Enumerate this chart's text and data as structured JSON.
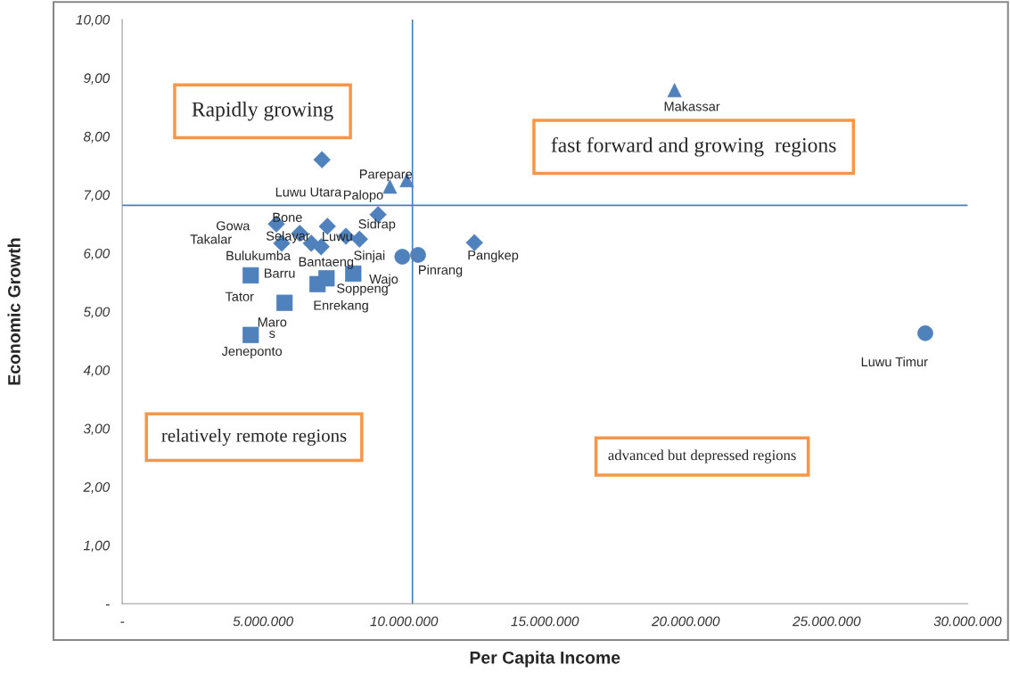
{
  "chart_data": {
    "type": "scatter",
    "xlabel": "Per Capita Income",
    "ylabel": "Economic Growth",
    "xlim": [
      0,
      30000000
    ],
    "ylim": [
      0,
      10
    ],
    "xticks": [
      {
        "value": 0,
        "label": "-"
      },
      {
        "value": 5000000,
        "label": "5.000.000"
      },
      {
        "value": 10000000,
        "label": "10.000.000"
      },
      {
        "value": 15000000,
        "label": "15.000.000"
      },
      {
        "value": 20000000,
        "label": "20.000.000"
      },
      {
        "value": 25000000,
        "label": "25.000.000"
      },
      {
        "value": 30000000,
        "label": "30.000.000"
      }
    ],
    "yticks": [
      {
        "value": 0,
        "label": "-"
      },
      {
        "value": 1,
        "label": "1,00"
      },
      {
        "value": 2,
        "label": "2,00"
      },
      {
        "value": 3,
        "label": "3,00"
      },
      {
        "value": 4,
        "label": "4,00"
      },
      {
        "value": 5,
        "label": "5,00"
      },
      {
        "value": 6,
        "label": "6,00"
      },
      {
        "value": 7,
        "label": "7,00"
      },
      {
        "value": 8,
        "label": "8,00"
      },
      {
        "value": 9,
        "label": "9,00"
      },
      {
        "value": 10,
        "label": "10,00"
      }
    ],
    "grid": false,
    "legend": false,
    "series": [
      {
        "color": "#4f81bd",
        "marker": "diamond",
        "x": [
          7090000,
          9080000,
          5470000,
          6300000,
          7280000,
          5660000,
          6710000,
          7060000,
          7940000,
          8420000,
          12500000
        ],
        "values": [
          7.6,
          6.66,
          6.5,
          6.34,
          6.46,
          6.17,
          6.17,
          6.11,
          6.29,
          6.24,
          6.18
        ]
      },
      {
        "color": "#4f81bd",
        "marker": "triangle",
        "x": [
          19600000,
          10100000,
          9500000
        ],
        "values": [
          8.79,
          7.25,
          7.14
        ]
      },
      {
        "color": "#4f81bd",
        "marker": "circle",
        "x": [
          9940000,
          10500000,
          28500000
        ],
        "values": [
          5.94,
          5.97,
          4.63
        ]
      },
      {
        "color": "#4f81bd",
        "marker": "square",
        "x": [
          4560000,
          5760000,
          4560000,
          7250000,
          6930000,
          8200000
        ],
        "values": [
          5.62,
          5.15,
          4.6,
          5.57,
          5.47,
          5.65
        ]
      }
    ],
    "ref_lines": [
      {
        "axis": "x",
        "value": 10300000,
        "color": "#4a7ebb"
      },
      {
        "axis": "y",
        "value": 6.82,
        "color": "#4a7ebb"
      }
    ],
    "annotations": [
      "Rapidly growing",
      "fast forward and growing  regions",
      "relatively remote regions",
      "advanced but depressed regions",
      "Gowa",
      "Takalar",
      {
        "text": "Luwu Utara",
        "x": 7090000,
        "y": 7.6
      },
      {
        "text": "Parepare",
        "x": 10100000,
        "y": 7.25
      },
      {
        "text": "Palopo",
        "x": 9080000,
        "y": 6.66
      },
      {
        "text": "Bone",
        "x": 6300000,
        "y": 6.34
      },
      {
        "text": "Selayar",
        "x": 5660000,
        "y": 6.17
      },
      {
        "text": "Luwu",
        "x": 7280000,
        "y": 6.46
      },
      {
        "text": "Sidrap",
        "x": 7940000,
        "y": 6.29
      },
      {
        "text": "Sinjai",
        "x": 8420000,
        "y": 6.24
      },
      {
        "text": "Bantaeng",
        "x": 7060000,
        "y": 6.11
      },
      {
        "text": "Bulukumba",
        "x": 4560000,
        "y": 5.62
      },
      {
        "text": "Tator",
        "x": 4560000,
        "y": 5.62
      },
      {
        "text": "Barru",
        "x": 5760000,
        "y": 5.15
      },
      {
        "text": "Maro\ns",
        "x": 5760000,
        "y": 5.15
      },
      {
        "text": "Jeneponto",
        "x": 4560000,
        "y": 4.6
      },
      {
        "text": "Soppeng",
        "x": 7250000,
        "y": 5.57
      },
      {
        "text": "Enrekang",
        "x": 6930000,
        "y": 5.47
      },
      {
        "text": "Wajo",
        "x": 9940000,
        "y": 5.94
      },
      {
        "text": "Pinrang",
        "x": 10500000,
        "y": 5.97
      },
      {
        "text": "Pangkep",
        "x": 12500000,
        "y": 6.18
      },
      {
        "text": "Makassar",
        "x": 19600000,
        "y": 8.79
      },
      {
        "text": "Luwu Timur",
        "x": 28500000,
        "y": 4.63
      }
    ]
  }
}
